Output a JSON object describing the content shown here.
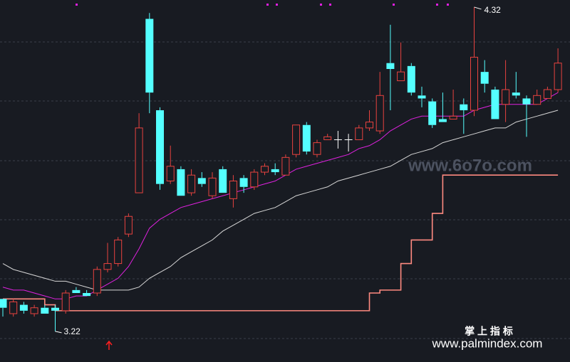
{
  "chart_data": {
    "type": "candlestick",
    "ylim": [
      3.116,
      4.344
    ],
    "open": [
      3.33,
      3.28,
      3.31,
      3.28,
      3.3,
      3.3,
      3.29,
      3.36,
      3.35,
      3.35,
      3.43,
      3.45,
      3.55,
      3.69,
      4.28,
      3.97,
      3.73,
      3.77,
      3.69,
      3.74,
      3.68,
      3.77,
      3.67,
      3.74,
      3.71,
      3.76,
      3.77,
      3.75,
      3.82,
      3.92,
      3.82,
      3.87,
      3.87,
      3.87,
      3.87,
      3.91,
      3.9,
      4.13,
      4.07,
      4.12,
      4.02,
      4.0,
      3.94,
      3.94,
      3.99,
      3.97,
      4.1,
      4.04,
      3.99,
      4.03,
      4.01,
      3.99,
      4.01,
      4.04
    ],
    "high": [
      3.33,
      3.33,
      3.32,
      3.31,
      3.31,
      3.31,
      3.36,
      3.37,
      3.36,
      3.44,
      3.52,
      3.54,
      3.62,
      3.96,
      4.3,
      3.98,
      3.85,
      3.78,
      3.77,
      3.76,
      3.76,
      3.78,
      3.75,
      3.75,
      3.77,
      3.79,
      3.79,
      3.82,
      3.92,
      3.93,
      3.87,
      3.89,
      3.9,
      3.89,
      3.92,
      3.97,
      4.1,
      4.26,
      4.2,
      4.13,
      4.05,
      4.01,
      4.03,
      4.04,
      4.01,
      4.32,
      4.14,
      4.05,
      4.14,
      4.1,
      4.02,
      4.04,
      4.05,
      4.18
    ],
    "low": [
      3.27,
      3.27,
      3.28,
      3.27,
      3.28,
      3.22,
      3.28,
      3.35,
      3.34,
      3.34,
      3.42,
      3.44,
      3.54,
      3.69,
      3.96,
      3.7,
      3.72,
      3.68,
      3.68,
      3.71,
      3.67,
      3.69,
      3.64,
      3.69,
      3.7,
      3.75,
      3.75,
      3.75,
      3.81,
      3.82,
      3.81,
      3.87,
      3.84,
      3.83,
      3.87,
      3.9,
      3.89,
      3.97,
      4.07,
      4.02,
      3.98,
      3.91,
      3.93,
      3.94,
      3.89,
      3.95,
      4.03,
      3.94,
      3.93,
      4.01,
      3.88,
      3.99,
      4.01,
      4.03
    ],
    "close": [
      3.3,
      3.32,
      3.29,
      3.3,
      3.28,
      3.29,
      3.35,
      3.35,
      3.34,
      3.43,
      3.45,
      3.53,
      3.61,
      3.91,
      4.03,
      3.72,
      3.78,
      3.68,
      3.75,
      3.72,
      3.74,
      3.69,
      3.73,
      3.71,
      3.76,
      3.78,
      3.76,
      3.81,
      3.92,
      3.83,
      3.86,
      3.88,
      3.87,
      3.87,
      3.91,
      3.93,
      4.02,
      4.11,
      4.1,
      4.03,
      4.01,
      3.92,
      3.93,
      3.95,
      3.97,
      4.15,
      4.06,
      3.94,
      4.04,
      4.02,
      3.99,
      4.02,
      4.04,
      4.13
    ],
    "up_color": "#e8433f",
    "down_color": "#54ffff",
    "flat_color": "#ffffff",
    "lines": [
      {
        "color": "#e021e0",
        "values": [
          3.37,
          3.36,
          3.36,
          3.35,
          3.34,
          3.33,
          3.33,
          3.34,
          3.34,
          3.36,
          3.38,
          3.4,
          3.44,
          3.5,
          3.57,
          3.6,
          3.62,
          3.64,
          3.65,
          3.66,
          3.67,
          3.68,
          3.69,
          3.7,
          3.71,
          3.72,
          3.73,
          3.75,
          3.77,
          3.78,
          3.79,
          3.8,
          3.81,
          3.82,
          3.84,
          3.85,
          3.87,
          3.9,
          3.92,
          3.94,
          3.95,
          3.95,
          3.95,
          3.95,
          3.95,
          3.97,
          3.98,
          3.99,
          3.99,
          3.99,
          3.99,
          3.99,
          4.01,
          4.03
        ]
      },
      {
        "color": "#d8d8d8",
        "values": [
          3.45,
          3.43,
          3.42,
          3.41,
          3.4,
          3.39,
          3.39,
          3.38,
          3.37,
          3.36,
          3.36,
          3.36,
          3.36,
          3.37,
          3.4,
          3.42,
          3.44,
          3.47,
          3.49,
          3.51,
          3.53,
          3.56,
          3.58,
          3.6,
          3.62,
          3.63,
          3.64,
          3.66,
          3.68,
          3.69,
          3.7,
          3.71,
          3.73,
          3.74,
          3.75,
          3.76,
          3.77,
          3.78,
          3.8,
          3.82,
          3.83,
          3.84,
          3.86,
          3.87,
          3.88,
          3.89,
          3.9,
          3.91,
          3.91,
          3.93,
          3.94,
          3.95,
          3.96,
          3.97
        ]
      },
      {
        "color": "#ff8a80",
        "step": true,
        "values": [
          3.33,
          3.33,
          3.33,
          3.33,
          3.31,
          3.29,
          3.29,
          3.29,
          3.29,
          3.29,
          3.29,
          3.29,
          3.29,
          3.29,
          3.29,
          3.29,
          3.29,
          3.29,
          3.29,
          3.29,
          3.29,
          3.29,
          3.29,
          3.29,
          3.29,
          3.29,
          3.29,
          3.29,
          3.29,
          3.29,
          3.29,
          3.29,
          3.29,
          3.29,
          3.29,
          3.35,
          3.36,
          3.36,
          3.45,
          3.53,
          3.53,
          3.62,
          3.75,
          3.75,
          3.75,
          3.75,
          3.75,
          3.75,
          3.75,
          3.75,
          3.75,
          3.75,
          3.75,
          3.75
        ]
      }
    ],
    "high_label": 4.32,
    "low_label": 3.22,
    "watermarks": [
      "www.6o7o.com",
      "掌 上 指 标",
      "www.palmindex.com"
    ]
  }
}
